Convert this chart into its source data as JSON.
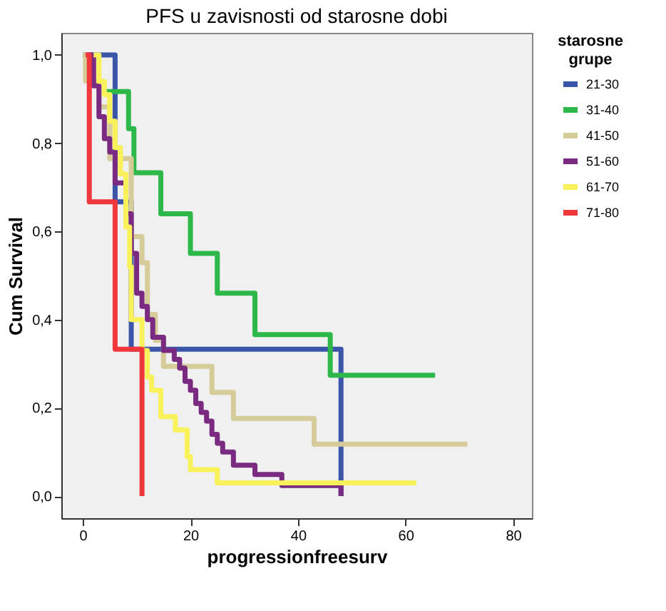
{
  "chart_data": {
    "type": "step",
    "title": "PFS u zavisnosti od starosne dobi",
    "xlabel": "progressionfreesurv",
    "ylabel": "Cum Survival",
    "legend_title": "starosne grupe",
    "xlim": [
      -4,
      83.5
    ],
    "ylim": [
      -0.05,
      1.05
    ],
    "xticks": [
      0,
      20,
      40,
      60,
      80
    ],
    "yticks": [
      {
        "value": 0,
        "label": "0,0"
      },
      {
        "value": 0.2,
        "label": "0,2"
      },
      {
        "value": 0.4,
        "label": "0,4"
      },
      {
        "value": 0.6,
        "label": "0,6"
      },
      {
        "value": 0.8,
        "label": "0,8"
      },
      {
        "value": 1.0,
        "label": "1,0"
      }
    ],
    "grid": false,
    "legend": "right",
    "marker": "none",
    "line_style": "solid",
    "series": [
      {
        "name": "21-30",
        "color": "#3b55a8",
        "x": [
          0,
          6,
          9,
          48,
          48
        ],
        "values": [
          1.0,
          0.667,
          0.333,
          0.0,
          0.0
        ]
      },
      {
        "name": "31-40",
        "color": "#2fb84a",
        "x": [
          4,
          8.5,
          9.5,
          14.5,
          20,
          25,
          32,
          46,
          65.5
        ],
        "values": [
          0.917,
          0.833,
          0.733,
          0.64,
          0.55,
          0.46,
          0.366,
          0.274,
          0.274
        ]
      },
      {
        "name": "41-50",
        "color": "#d6cc99",
        "x": [
          0,
          0.5,
          3,
          5,
          9,
          11,
          12,
          13.5,
          15,
          24,
          28,
          43,
          71.5
        ],
        "values": [
          1.0,
          0.941,
          0.882,
          0.765,
          0.588,
          0.529,
          0.412,
          0.353,
          0.294,
          0.235,
          0.176,
          0.118,
          0.118
        ]
      },
      {
        "name": "51-60",
        "color": "#7a2a80",
        "x": [
          1,
          2,
          3,
          4,
          5,
          6,
          8,
          9,
          10,
          11,
          12,
          13,
          15,
          17,
          18,
          19,
          20,
          21,
          22,
          23,
          24,
          25,
          26,
          28,
          32,
          37,
          48,
          48
        ],
        "values": [
          1.0,
          0.93,
          0.86,
          0.81,
          0.78,
          0.71,
          0.64,
          0.55,
          0.46,
          0.43,
          0.4,
          0.36,
          0.33,
          0.31,
          0.29,
          0.26,
          0.24,
          0.21,
          0.19,
          0.17,
          0.14,
          0.12,
          0.1,
          0.07,
          0.049,
          0.024,
          0.0,
          0.0
        ]
      },
      {
        "name": "61-70",
        "color": "#f8f15a",
        "x": [
          2,
          3,
          4,
          5,
          6,
          7,
          8,
          8.7,
          9,
          11,
          12,
          12.8,
          14.5,
          17.2,
          19.4,
          20,
          25,
          62
        ],
        "values": [
          1.0,
          0.94,
          0.91,
          0.85,
          0.79,
          0.73,
          0.61,
          0.52,
          0.4,
          0.33,
          0.27,
          0.24,
          0.18,
          0.15,
          0.09,
          0.06,
          0.03,
          0.03
        ]
      },
      {
        "name": "71-80",
        "color": "#f0373c",
        "x": [
          0.5,
          1.2,
          6,
          11,
          11
        ],
        "values": [
          1.0,
          0.667,
          0.333,
          0.0,
          0.0
        ]
      }
    ]
  }
}
